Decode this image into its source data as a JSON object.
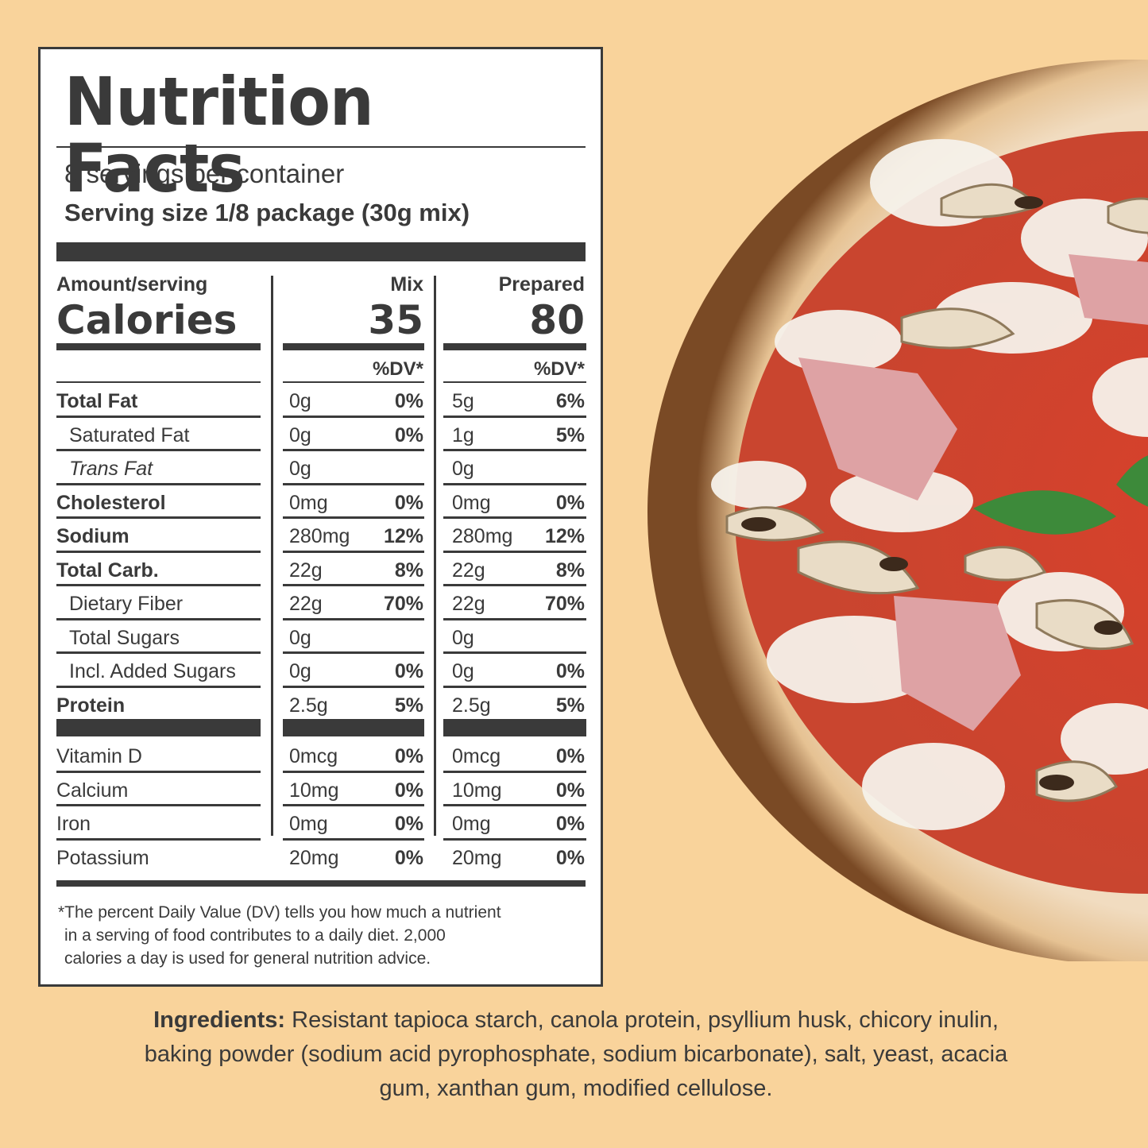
{
  "colors": {
    "background": "#f9d39b",
    "ink": "#3a3a3a",
    "label_bg": "#ffffff"
  },
  "label": {
    "title": "Nutrition Facts",
    "servings_per_container": "8 servings per container",
    "serving_size": "Serving size 1/8 package (30g mix)",
    "amount_per_serving": "Amount/serving",
    "calories_label": "Calories",
    "columns": [
      {
        "name": "Mix",
        "calories": "35",
        "dv_header": "%DV*"
      },
      {
        "name": "Prepared",
        "calories": "80",
        "dv_header": "%DV*"
      }
    ],
    "nutrients": [
      {
        "name": "Total Fat",
        "style": "bold",
        "mix_amount": "0g",
        "mix_dv": "0%",
        "prep_amount": "5g",
        "prep_dv": "6%"
      },
      {
        "name": "Saturated Fat",
        "style": "indent",
        "mix_amount": "0g",
        "mix_dv": "0%",
        "prep_amount": "1g",
        "prep_dv": "5%"
      },
      {
        "name": "Trans Fat",
        "style": "italic",
        "mix_amount": "0g",
        "mix_dv": "",
        "prep_amount": "0g",
        "prep_dv": ""
      },
      {
        "name": "Cholesterol",
        "style": "bold",
        "mix_amount": "0mg",
        "mix_dv": "0%",
        "prep_amount": "0mg",
        "prep_dv": "0%"
      },
      {
        "name": "Sodium",
        "style": "bold",
        "mix_amount": "280mg",
        "mix_dv": "12%",
        "prep_amount": "280mg",
        "prep_dv": "12%"
      },
      {
        "name": "Total Carb.",
        "style": "bold",
        "mix_amount": "22g",
        "mix_dv": "8%",
        "prep_amount": "22g",
        "prep_dv": "8%"
      },
      {
        "name": "Dietary Fiber",
        "style": "indent",
        "mix_amount": "22g",
        "mix_dv": "70%",
        "prep_amount": "22g",
        "prep_dv": "70%"
      },
      {
        "name": "Total Sugars",
        "style": "indent",
        "mix_amount": "0g",
        "mix_dv": "",
        "prep_amount": "0g",
        "prep_dv": ""
      },
      {
        "name": "Incl. Added Sugars",
        "style": "indent",
        "mix_amount": "0g",
        "mix_dv": "0%",
        "prep_amount": "0g",
        "prep_dv": "0%"
      },
      {
        "name": "Protein",
        "style": "bold",
        "mix_amount": "2.5g",
        "mix_dv": "5%",
        "prep_amount": "2.5g",
        "prep_dv": "5%"
      }
    ],
    "vitamins": [
      {
        "name": "Vitamin D",
        "mix_amount": "0mcg",
        "mix_dv": "0%",
        "prep_amount": "0mcg",
        "prep_dv": "0%"
      },
      {
        "name": "Calcium",
        "mix_amount": "10mg",
        "mix_dv": "0%",
        "prep_amount": "10mg",
        "prep_dv": "0%"
      },
      {
        "name": "Iron",
        "mix_amount": "0mg",
        "mix_dv": "0%",
        "prep_amount": "0mg",
        "prep_dv": "0%"
      },
      {
        "name": "Potassium",
        "mix_amount": "20mg",
        "mix_dv": "0%",
        "prep_amount": "20mg",
        "prep_dv": "0%"
      }
    ],
    "footnote": [
      "*The percent Daily Value (DV) tells you how much a nutrient",
      "in a serving of food contributes to a daily diet. 2,000",
      "calories a day is used for general nutrition advice."
    ]
  },
  "ingredients": {
    "label": "Ingredients:",
    "text": " Resistant tapioca starch, canola protein, psyllium husk, chicory inulin, baking powder (sodium acid pyrophosphate, sodium bicarbonate), salt, yeast, acacia gum, xanthan gum, modified cellulose."
  },
  "image": {
    "subject": "pizza-photo"
  }
}
